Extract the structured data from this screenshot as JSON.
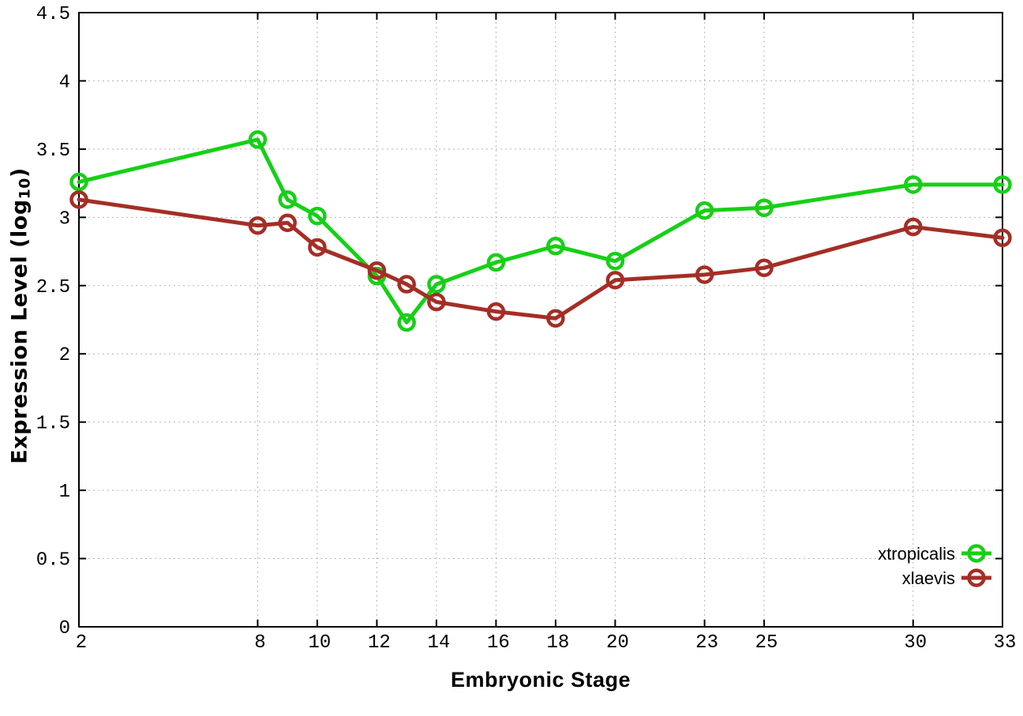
{
  "chart_data": {
    "type": "line",
    "title": "",
    "xlabel": "Embryonic Stage",
    "ylabel": "Expression Level (log10)",
    "ylabel_parts": {
      "main": "Expression Level (log",
      "sub": "10",
      "close": ")"
    },
    "x": [
      2,
      8,
      9,
      10,
      12,
      13,
      14,
      16,
      18,
      20,
      23,
      25,
      30,
      33
    ],
    "series": [
      {
        "name": "xtropicalis",
        "color": "#16d016",
        "values": [
          3.26,
          3.57,
          3.13,
          3.01,
          2.57,
          2.23,
          2.51,
          2.67,
          2.79,
          2.68,
          3.05,
          3.07,
          3.24,
          3.24
        ]
      },
      {
        "name": "xlaevis",
        "color": "#a42e26",
        "values": [
          3.13,
          2.94,
          2.96,
          2.78,
          2.61,
          2.51,
          2.38,
          2.31,
          2.26,
          2.54,
          2.58,
          2.63,
          2.93,
          2.85
        ]
      }
    ],
    "xlim": [
      2,
      33
    ],
    "ylim": [
      0,
      4.5
    ],
    "xticks": {
      "values": [
        2,
        8,
        10,
        12,
        14,
        16,
        18,
        20,
        23,
        25,
        30,
        33
      ],
      "labels": [
        "2",
        "8",
        "10",
        "12",
        "14",
        "16",
        "18",
        "20",
        "23",
        "25",
        "30",
        "33"
      ]
    },
    "yticks": {
      "values": [
        0,
        0.5,
        1,
        1.5,
        2,
        2.5,
        3,
        3.5,
        4,
        4.5
      ],
      "labels": [
        "0",
        "0.5",
        "1",
        "1.5",
        "2",
        "2.5",
        "3",
        "3.5",
        "4",
        "4.5"
      ]
    },
    "grid": true,
    "grid_color": "#b4b4b4",
    "background": "#ffffff",
    "legend_position": "bottom-right-inside",
    "marker": "open-circle"
  }
}
